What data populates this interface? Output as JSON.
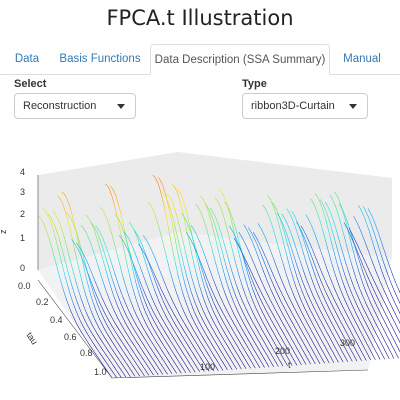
{
  "app": {
    "title": "FPCA.t  Illustration"
  },
  "tabs": [
    {
      "label": "Data",
      "active": false
    },
    {
      "label": "Basis Functions",
      "active": false
    },
    {
      "label": "Data Description (SSA Summary)",
      "active": true
    },
    {
      "label": "Manual",
      "active": false
    }
  ],
  "controls": {
    "select_label": "Select",
    "select_value": "Reconstruction",
    "type_label": "Type",
    "type_value": "ribbon3D-Curtain"
  },
  "plot": {
    "type": "3d-ribbon-surface",
    "z_label": "z",
    "z_ticks": [
      "0",
      "1",
      "2",
      "3",
      "4"
    ],
    "tau_label": "tau",
    "tau_ticks": [
      "0.0",
      "0.2",
      "0.4",
      "0.6",
      "0.8",
      "1.0"
    ],
    "t_label": "t",
    "t_ticks": [
      "100",
      "200",
      "300"
    ],
    "colors": {
      "low": "#00008b",
      "mid": "#00e5e5",
      "high": "#ff0000",
      "pane": "#ebebeb"
    }
  }
}
